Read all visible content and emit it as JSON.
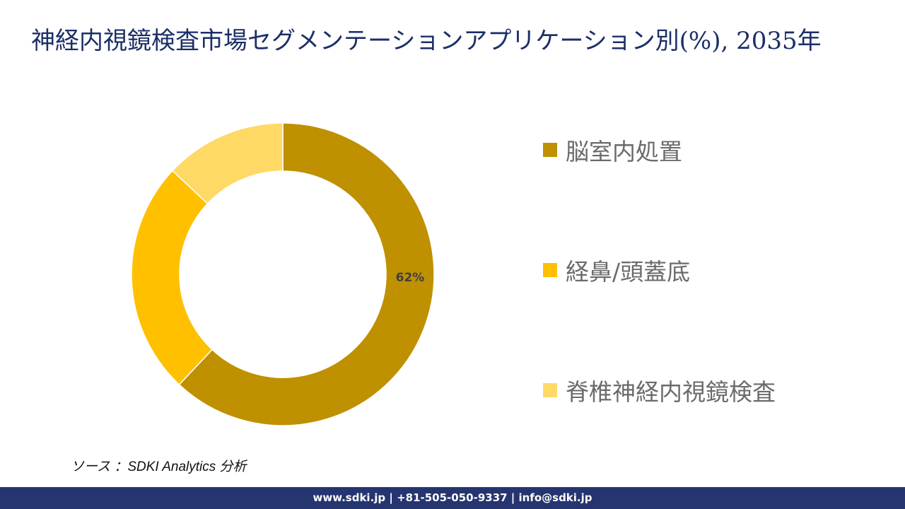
{
  "title": "神経内視鏡検査市場セグメンテーションアプリケーション別(%), 2035年",
  "chart_data": {
    "type": "donut",
    "title": "神経内視鏡検査市場セグメンテーションアプリケーション別(%), 2035年",
    "categories": [
      "脳室内処置",
      "経鼻/頭蓋底",
      "脊椎神経内視鏡検査"
    ],
    "values": [
      62,
      25,
      13
    ],
    "colors": [
      "#bf9000",
      "#ffc000",
      "#ffd966"
    ],
    "data_labels": [
      {
        "category": "脳室内処置",
        "label": "62%"
      }
    ],
    "legend_position": "right",
    "start_angle_deg": 0,
    "direction": "clockwise"
  },
  "legend": {
    "items": [
      {
        "label": "脳室内処置",
        "color": "#bf9000"
      },
      {
        "label": "経鼻/頭蓋底",
        "color": "#ffc000"
      },
      {
        "label": "脊椎神経内視鏡検査",
        "color": "#ffd966"
      }
    ]
  },
  "source": "ソース ：SDKI Analytics 分析",
  "footer": "www.sdki.jp | +81-505-050-9337 | info@sdki.jp"
}
